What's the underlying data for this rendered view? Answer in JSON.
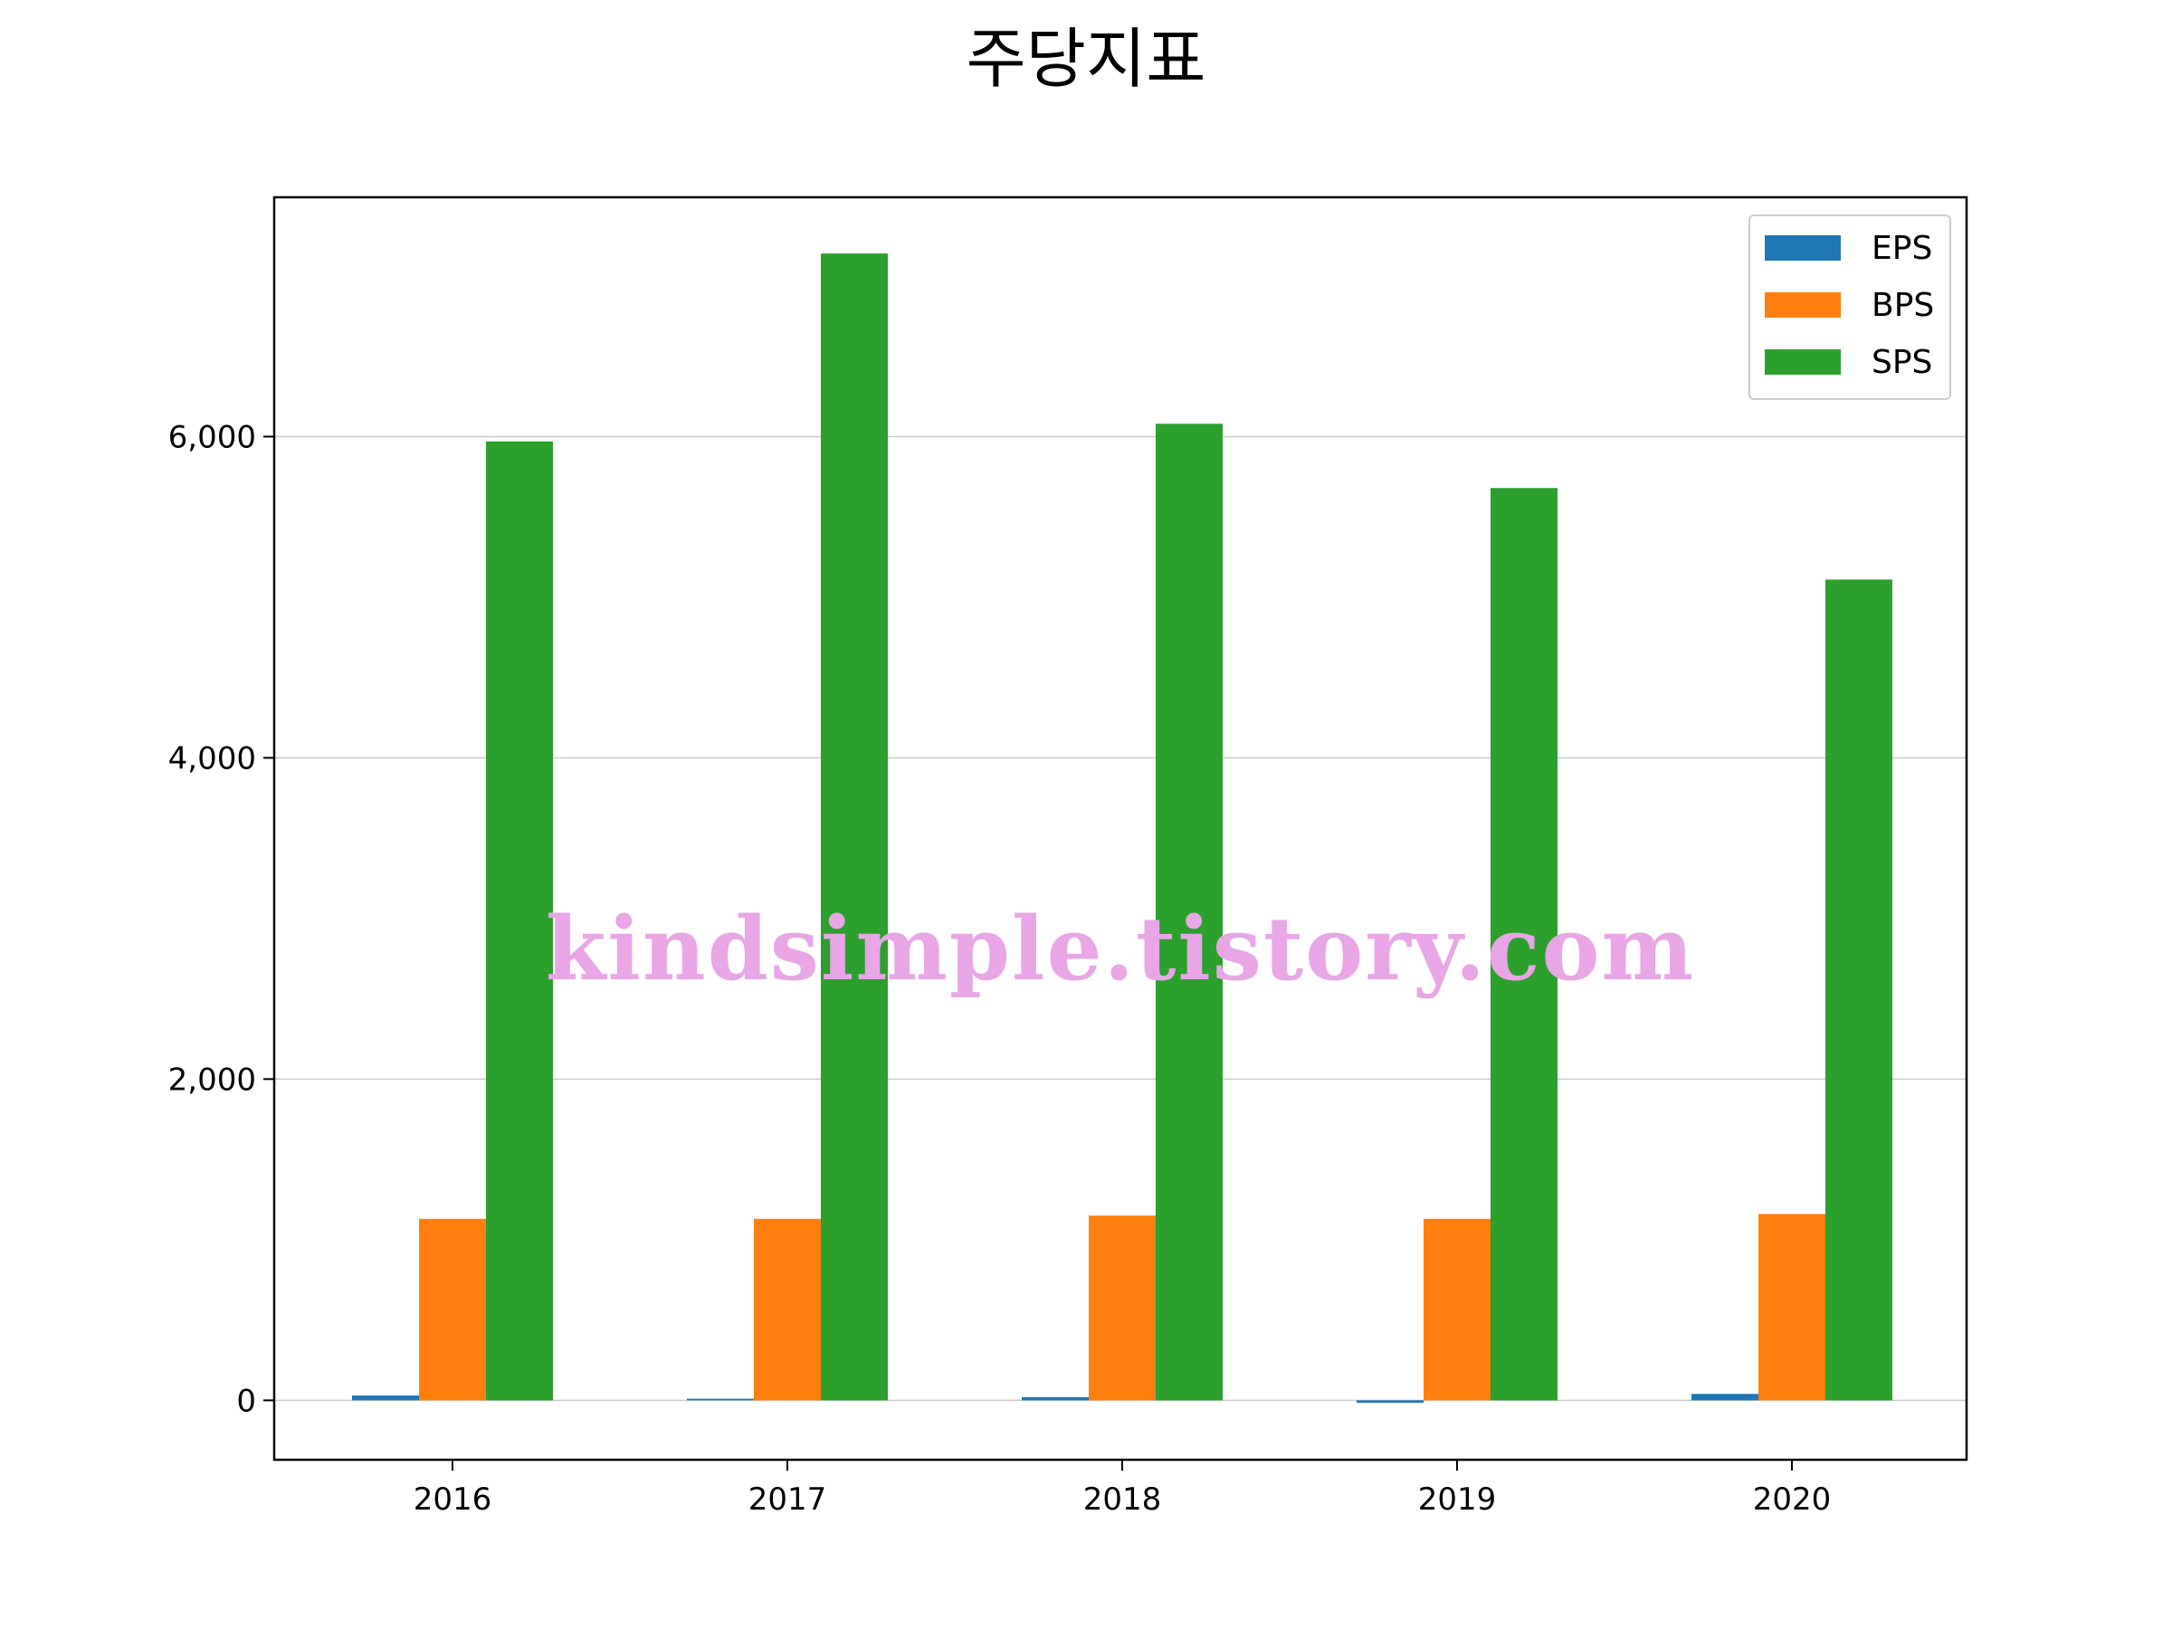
{
  "chart_data": {
    "type": "bar",
    "title": "주당지표",
    "xlabel": "",
    "ylabel": "",
    "categories": [
      "2016",
      "2017",
      "2018",
      "2019",
      "2020"
    ],
    "series": [
      {
        "name": "EPS",
        "color": "#1f77b4",
        "values": [
          30,
          10,
          20,
          -15,
          40
        ]
      },
      {
        "name": "BPS",
        "color": "#ff7f0e",
        "values": [
          1130,
          1130,
          1150,
          1130,
          1160
        ]
      },
      {
        "name": "SPS",
        "color": "#2ca02c",
        "values": [
          5970,
          7140,
          6080,
          5680,
          5110
        ]
      }
    ],
    "ylim": [
      -370,
      7490
    ],
    "yticks": [
      0,
      2000,
      4000,
      6000
    ],
    "ytick_labels": [
      "0",
      "2,000",
      "4,000",
      "6,000"
    ],
    "grid": "horizontal",
    "legend_position": "top-right"
  },
  "watermark": "kindsimple.tistory.com"
}
